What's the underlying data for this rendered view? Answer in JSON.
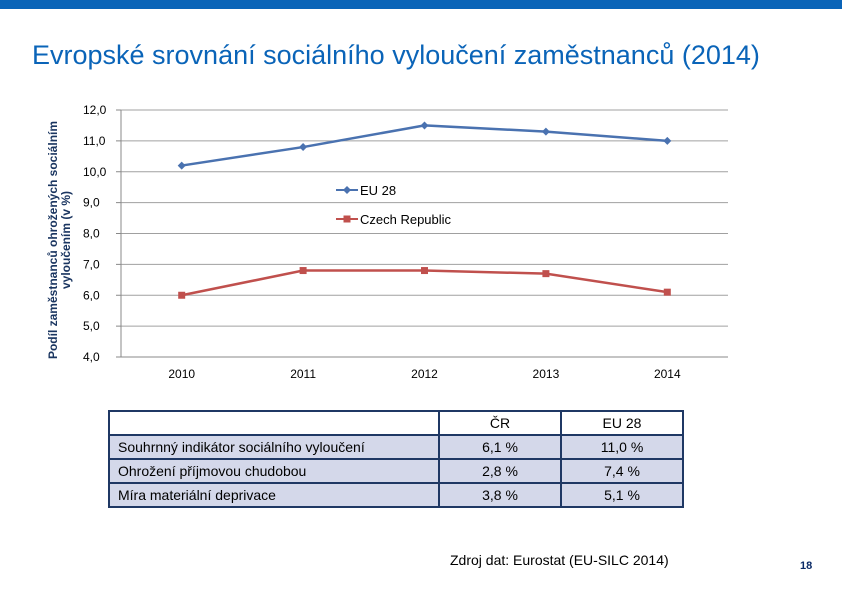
{
  "slide": {
    "title": "Evropské srovnání sociálního vyloučení zaměstnanců (2014)",
    "source": "Zdroj dat: Eurostat (EU-SILC 2014)",
    "page_number": "18"
  },
  "colors": {
    "accent": "#0a64b8",
    "eu28": "#4a72b0",
    "cz": "#c0504d",
    "table_fill": "#d4d8ea",
    "table_border": "#1f3864"
  },
  "chart_data": {
    "type": "line",
    "ylabel": "Podíl zaměstnanců ohrožených sociálním vyloučením (v %)",
    "xlabel": "",
    "categories": [
      "2010",
      "2011",
      "2012",
      "2013",
      "2014"
    ],
    "ylim": [
      4.0,
      12.0
    ],
    "yticks": [
      "4,0",
      "5,0",
      "6,0",
      "7,0",
      "8,0",
      "9,0",
      "10,0",
      "11,0",
      "12,0"
    ],
    "grid": true,
    "legend": "center",
    "series": [
      {
        "name": "EU 28",
        "marker": "diamond",
        "values": [
          10.2,
          10.8,
          11.5,
          11.3,
          11.0
        ]
      },
      {
        "name": "Czech Republic",
        "marker": "square",
        "values": [
          6.0,
          6.8,
          6.8,
          6.7,
          6.1
        ]
      }
    ]
  },
  "table": {
    "headers": [
      "",
      "ČR",
      "EU 28"
    ],
    "rows": [
      [
        "Souhrnný indikátor sociálního vyloučení",
        "6,1 %",
        "11,0 %"
      ],
      [
        "Ohrožení příjmovou chudobou",
        "2,8 %",
        "7,4 %"
      ],
      [
        "Míra materiální deprivace",
        "3,8 %",
        "5,1 %"
      ]
    ]
  }
}
